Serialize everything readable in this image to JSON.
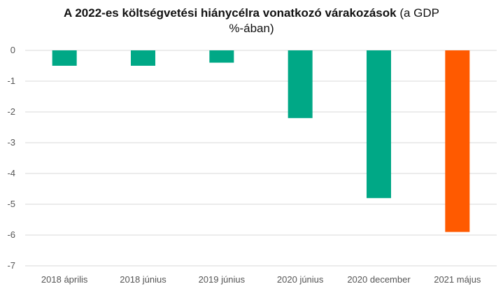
{
  "chart_data": {
    "type": "bar",
    "title_bold": "A 2022-es költségvetési hiánycélra vonatkozó várakozások",
    "title_normal_line1": " (a GDP",
    "title_normal_line2": "%-ában)",
    "xlabel": "",
    "ylabel": "",
    "categories": [
      "2018 április",
      "2018 június",
      "2019 június",
      "2020 június",
      "2020 december",
      "2021 május"
    ],
    "values": [
      -0.5,
      -0.5,
      -0.4,
      -2.2,
      -4.8,
      -5.9
    ],
    "ylim": [
      -7,
      0
    ],
    "yticks": [
      "0",
      "-1",
      "-2",
      "-3",
      "-4",
      "-5",
      "-6",
      "-7"
    ],
    "grid": true,
    "legend": "none",
    "colors": {
      "default_bar": "#00A886",
      "highlight_bar": "#FF5A00",
      "grid": "#d9d9d9",
      "tick_text": "#555555"
    },
    "highlight_index": 5
  }
}
